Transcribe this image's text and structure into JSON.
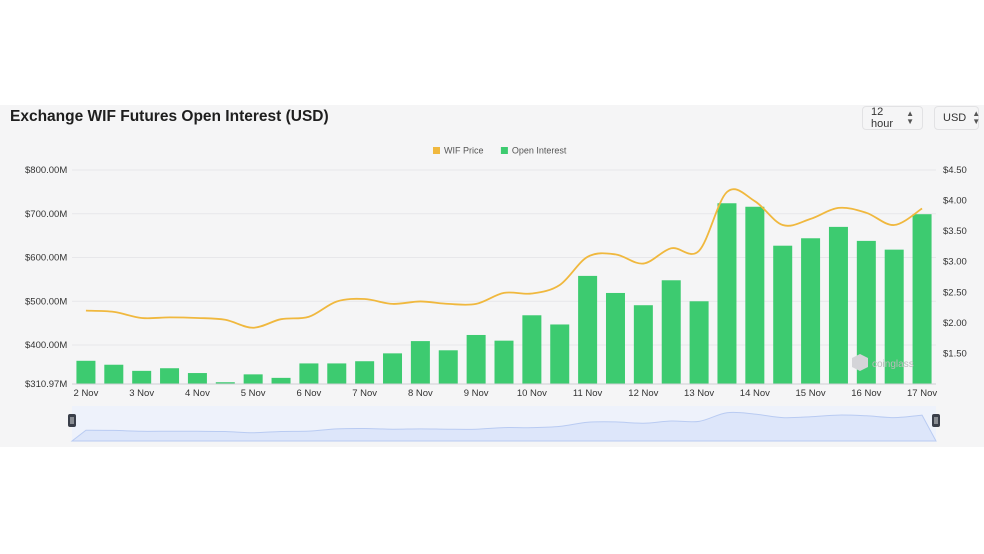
{
  "header": {
    "title": "Exchange WIF Futures Open Interest (USD)",
    "interval_label": "12 hour",
    "currency_label": "USD"
  },
  "watermark": "coinglass",
  "colors": {
    "bar": "#3dcb70",
    "price_line": "#f0b83e",
    "navigator_fill": "#dde6fa",
    "navigator_line": "#b9cbf2"
  },
  "chart_data": {
    "type": "bar",
    "legend": {
      "position": "top-center",
      "items": [
        "WIF Price",
        "Open Interest"
      ]
    },
    "x_tick_labels": [
      "2 Nov",
      "3 Nov",
      "4 Nov",
      "5 Nov",
      "6 Nov",
      "7 Nov",
      "8 Nov",
      "9 Nov",
      "10 Nov",
      "11 Nov",
      "12 Nov",
      "13 Nov",
      "14 Nov",
      "15 Nov",
      "16 Nov",
      "17 Nov"
    ],
    "y_left": {
      "ticks": [
        "$800.00M",
        "$700.00M",
        "$600.00M",
        "$500.00M",
        "$400.00M",
        "$310.97M"
      ],
      "range": [
        310.97,
        800
      ],
      "unit": "M USD"
    },
    "y_right": {
      "ticks": [
        "$4.50",
        "$4.00",
        "$3.50",
        "$3.00",
        "$2.50",
        "$2.00",
        "$1.50"
      ],
      "range": [
        1.0,
        4.5
      ]
    },
    "series": [
      {
        "name": "Open Interest",
        "kind": "bar",
        "axis": "left",
        "values": [
          364,
          355,
          341,
          347,
          336,
          315,
          333,
          325,
          358,
          358,
          363,
          381,
          409,
          388,
          423,
          410,
          468,
          447,
          558,
          519,
          491,
          548,
          500,
          724,
          716,
          627,
          644,
          670,
          638,
          618,
          699
        ]
      },
      {
        "name": "WIF Price",
        "kind": "line",
        "axis": "right",
        "values": [
          2.2,
          2.18,
          2.08,
          2.09,
          2.08,
          2.05,
          1.92,
          2.06,
          2.1,
          2.35,
          2.39,
          2.31,
          2.35,
          2.31,
          2.31,
          2.49,
          2.48,
          2.62,
          3.08,
          3.12,
          2.97,
          3.22,
          3.18,
          4.14,
          3.99,
          3.6,
          3.7,
          3.88,
          3.8,
          3.6,
          3.87
        ]
      }
    ]
  }
}
